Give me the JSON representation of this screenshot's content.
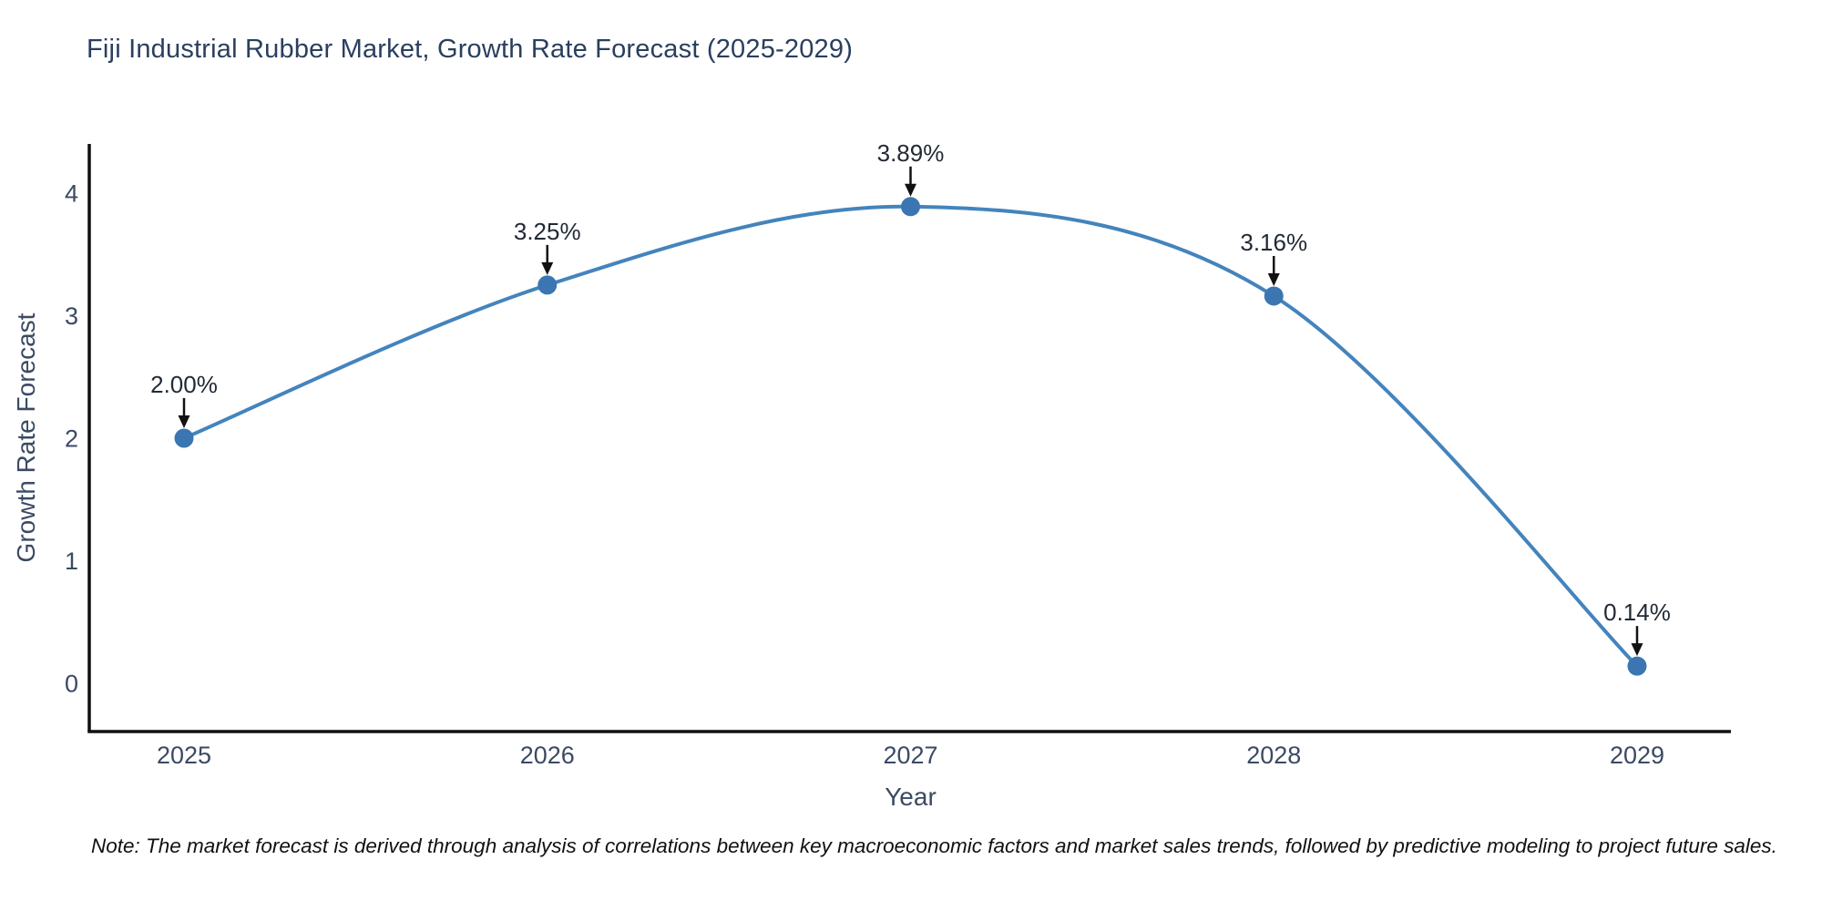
{
  "page": {
    "background": "#ffffff"
  },
  "chart_data": {
    "type": "line",
    "title": "Fiji Industrial Rubber Market, Growth Rate Forecast (2025-2029)",
    "xlabel": "Year",
    "ylabel": "Growth Rate Forecast",
    "x": [
      2025,
      2026,
      2027,
      2028,
      2029
    ],
    "y": [
      2.0,
      3.25,
      3.89,
      3.16,
      0.14
    ],
    "point_labels": [
      "2.00%",
      "3.25%",
      "3.89%",
      "3.16%",
      "0.14%"
    ],
    "xticks": [
      "2025",
      "2026",
      "2027",
      "2028",
      "2029"
    ],
    "yticks": [
      0,
      1,
      2,
      3,
      4
    ],
    "xlim": [
      2025,
      2029
    ],
    "ylim": [
      0,
      4
    ],
    "grid": false,
    "legend": "none",
    "line_smooth": true,
    "annotation_arrows": "down-to-point",
    "colors": {
      "line": "#4484bc",
      "marker": "#3b76b3",
      "axis": "#111111",
      "arrow": "#111111",
      "tick_text": "#3b4a63",
      "annotation_text": "#222a35",
      "title_text": "#2a3f5f"
    },
    "note": "Note: The market forecast is derived through analysis of correlations between key macroeconomic factors and market sales trends, followed by predictive modeling to project future sales."
  }
}
